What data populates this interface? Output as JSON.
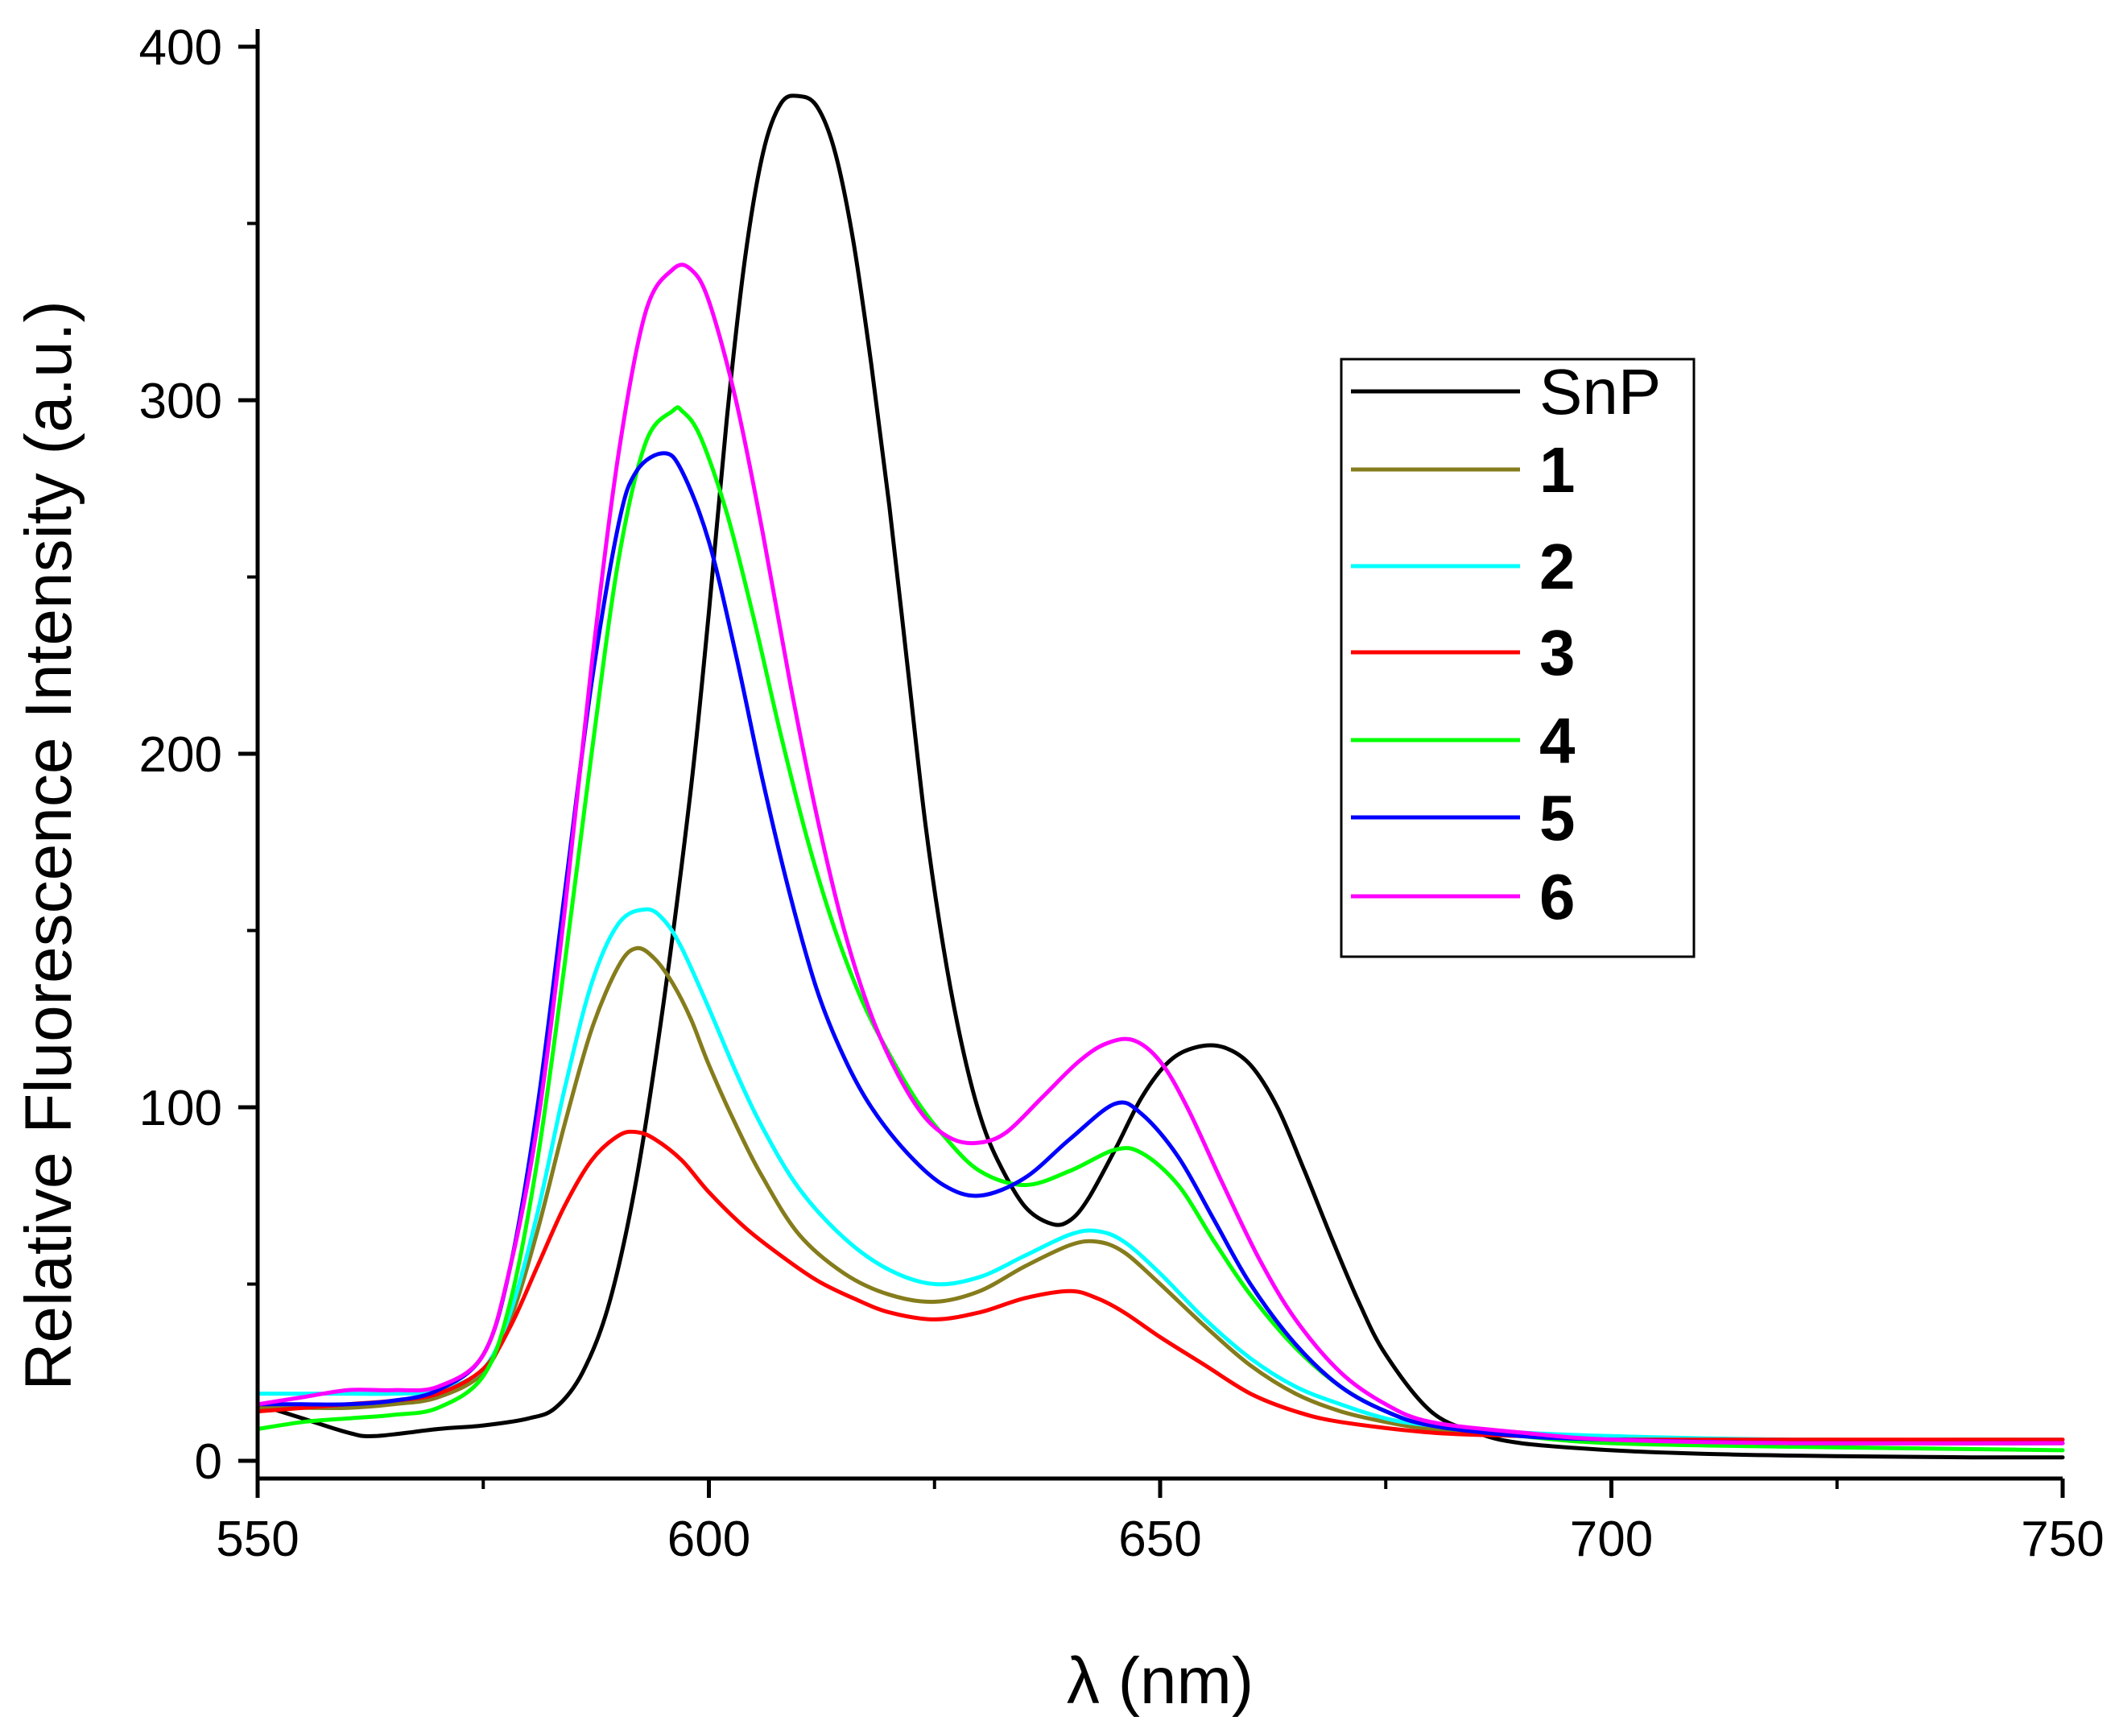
{
  "chart_data": {
    "type": "line",
    "title": "",
    "xlabel": "λ (nm)",
    "ylabel": "Relative Fluorescence Intensity (a.u.)",
    "xlim": [
      550,
      750
    ],
    "ylim": [
      -5,
      405
    ],
    "xticks": [
      550,
      600,
      650,
      700,
      750
    ],
    "xminor": [
      575,
      625,
      675,
      725
    ],
    "yticks": [
      0,
      100,
      200,
      300,
      400
    ],
    "yminor": [
      50,
      150,
      250,
      350
    ],
    "grid": false,
    "legend_position": "right",
    "series": [
      {
        "name": "SnP",
        "color": "#000000",
        "bold": false,
        "x": [
          550,
          555,
          560,
          563,
          570,
          575,
          580,
          583,
          586,
          589,
          592,
          595,
          598,
          600,
          602,
          604,
          606,
          608,
          610,
          612,
          614,
          616,
          618,
          620,
          622,
          624,
          626,
          628,
          630,
          632,
          635,
          638,
          640,
          642,
          645,
          648,
          651,
          654,
          657,
          660,
          663,
          666,
          669,
          672,
          675,
          680,
          685,
          690,
          700,
          710,
          720,
          730,
          740,
          750
        ],
        "y": [
          16,
          12,
          8,
          7,
          9,
          10,
          12,
          15,
          25,
          45,
          80,
          130,
          190,
          240,
          295,
          340,
          370,
          384,
          386,
          383,
          370,
          345,
          310,
          270,
          225,
          180,
          145,
          118,
          98,
          85,
          72,
          67,
          68,
          74,
          88,
          103,
          113,
          117,
          117,
          112,
          100,
          82,
          63,
          45,
          30,
          14,
          8,
          5,
          3,
          2,
          1.5,
          1.2,
          1,
          1
        ]
      },
      {
        "name": "1",
        "color": "#857c1c",
        "bold": true,
        "x": [
          550,
          555,
          560,
          565,
          570,
          575,
          578,
          581,
          584,
          587,
          590,
          592,
          594,
          596,
          598,
          600,
          603,
          606,
          610,
          615,
          620,
          625,
          630,
          635,
          640,
          643,
          646,
          650,
          655,
          660,
          665,
          670,
          675,
          680,
          690,
          700,
          720,
          750
        ],
        "y": [
          15,
          15,
          15,
          16,
          18,
          25,
          40,
          65,
          95,
          122,
          140,
          145,
          142,
          135,
          125,
          112,
          95,
          80,
          64,
          53,
          47,
          45,
          48,
          55,
          61,
          62,
          59,
          50,
          38,
          27,
          19,
          14,
          11,
          9,
          7,
          6,
          5,
          5
        ]
      },
      {
        "name": "2",
        "color": "#00ffff",
        "bold": true,
        "x": [
          550,
          555,
          560,
          565,
          570,
          575,
          578,
          581,
          584,
          587,
          590,
          593,
          595,
          597,
          600,
          603,
          606,
          610,
          615,
          620,
          625,
          630,
          635,
          640,
          643,
          646,
          650,
          655,
          660,
          665,
          670,
          675,
          680,
          690,
          700,
          720,
          750
        ],
        "y": [
          19,
          19,
          19,
          19,
          20,
          26,
          42,
          70,
          105,
          135,
          152,
          156,
          153,
          145,
          128,
          110,
          94,
          77,
          63,
          54,
          50,
          52,
          58,
          64,
          65,
          62,
          53,
          40,
          29,
          21,
          16,
          12,
          10,
          8,
          7,
          6,
          6
        ]
      },
      {
        "name": "3",
        "color": "#ff0000",
        "bold": true,
        "x": [
          550,
          555,
          560,
          565,
          570,
          575,
          578,
          581,
          584,
          587,
          590,
          592,
          594,
          597,
          600,
          604,
          608,
          612,
          616,
          620,
          625,
          630,
          635,
          640,
          643,
          646,
          650,
          655,
          660,
          665,
          670,
          680,
          690,
          700,
          720,
          750
        ],
        "y": [
          14,
          15,
          16,
          17,
          19,
          26,
          38,
          55,
          72,
          85,
          92,
          93,
          91,
          85,
          76,
          66,
          58,
          51,
          46,
          42,
          40,
          42,
          46,
          48,
          46,
          42,
          35,
          27,
          19,
          14,
          11,
          8,
          7,
          6,
          6,
          6
        ]
      },
      {
        "name": "4",
        "color": "#00ff00",
        "bold": true,
        "x": [
          550,
          555,
          560,
          565,
          570,
          575,
          578,
          581,
          584,
          587,
          590,
          593,
          596,
          597,
          599,
          602,
          605,
          608,
          611,
          614,
          617,
          620,
          623,
          626,
          630,
          635,
          640,
          645,
          648,
          652,
          656,
          660,
          665,
          670,
          675,
          680,
          690,
          700,
          720,
          750
        ],
        "y": [
          9,
          11,
          12,
          13,
          15,
          24,
          45,
          85,
          140,
          200,
          255,
          288,
          297,
          297,
          290,
          268,
          238,
          205,
          175,
          150,
          130,
          115,
          102,
          92,
          82,
          78,
          82,
          88,
          87,
          78,
          62,
          47,
          32,
          21,
          14,
          10,
          7,
          5,
          4,
          3
        ]
      },
      {
        "name": "5",
        "color": "#0000ff",
        "bold": true,
        "x": [
          550,
          555,
          560,
          565,
          570,
          575,
          578,
          581,
          584,
          587,
          590,
          592,
          595,
          597,
          600,
          603,
          606,
          609,
          612,
          615,
          618,
          622,
          626,
          630,
          635,
          640,
          645,
          648,
          652,
          656,
          660,
          665,
          670,
          675,
          680,
          690,
          700,
          720,
          750
        ],
        "y": [
          16,
          16,
          16,
          17,
          20,
          30,
          55,
          100,
          160,
          220,
          265,
          280,
          285,
          280,
          260,
          228,
          192,
          160,
          133,
          114,
          100,
          87,
          78,
          75,
          80,
          91,
          101,
          98,
          86,
          68,
          50,
          33,
          21,
          14,
          10,
          7,
          6,
          5,
          5
        ]
      },
      {
        "name": "6",
        "color": "#ff00ff",
        "bold": true,
        "x": [
          550,
          555,
          560,
          565,
          570,
          575,
          578,
          581,
          584,
          587,
          590,
          593,
          596,
          598,
          600,
          603,
          606,
          609,
          612,
          615,
          618,
          621,
          624,
          627,
          630,
          633,
          637,
          641,
          644,
          647,
          650,
          653,
          657,
          661,
          665,
          670,
          675,
          680,
          690,
          700,
          720,
          750
        ],
        "y": [
          16,
          18,
          20,
          20,
          21,
          30,
          55,
          95,
          155,
          225,
          285,
          325,
          337,
          337,
          328,
          300,
          262,
          220,
          182,
          150,
          126,
          109,
          97,
          91,
          90,
          93,
          103,
          113,
          118,
          119,
          113,
          100,
          78,
          57,
          40,
          25,
          16,
          11,
          8,
          6,
          5,
          5
        ]
      }
    ]
  }
}
